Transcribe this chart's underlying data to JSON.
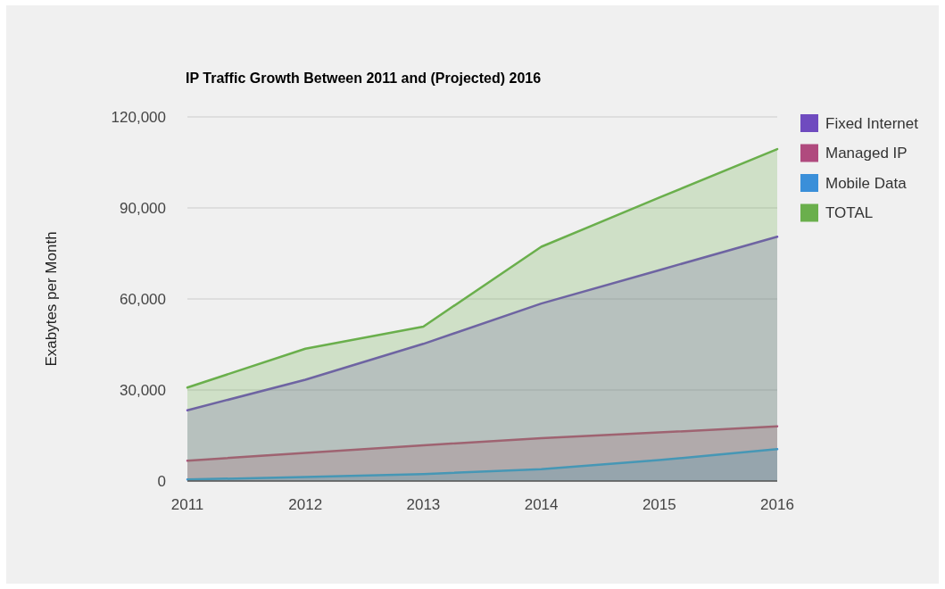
{
  "chart_data": {
    "type": "area",
    "title": "IP Traffic Growth Between 2011 and (Projected) 2016",
    "ylabel": "Exabytes per Month",
    "categories": [
      "2011",
      "2012",
      "2013",
      "2014",
      "2015",
      "2016"
    ],
    "series": [
      {
        "name": "Fixed Internet",
        "color": "#6f4bbf",
        "values": [
          23300,
          33400,
          45200,
          58500,
          69500,
          80500
        ]
      },
      {
        "name": "Managed IP",
        "color": "#b04a7e",
        "values": [
          6700,
          9300,
          11800,
          14100,
          16000,
          18000
        ]
      },
      {
        "name": "Mobile Data",
        "color": "#3a8fd9",
        "values": [
          500,
          1300,
          2300,
          3900,
          6900,
          10500
        ]
      },
      {
        "name": "TOTAL",
        "color": "#6aaf4c",
        "values": [
          30800,
          43600,
          50900,
          77200,
          93400,
          109400
        ]
      }
    ],
    "ylim": [
      0,
      120000
    ],
    "yticks": [
      {
        "value": 0,
        "label": "0"
      },
      {
        "value": 30000,
        "label": "30,000"
      },
      {
        "value": 60000,
        "label": "60,000"
      },
      {
        "value": 90000,
        "label": "90,000"
      },
      {
        "value": 120000,
        "label": "120,000"
      }
    ],
    "grid": "y",
    "legend": "right"
  }
}
